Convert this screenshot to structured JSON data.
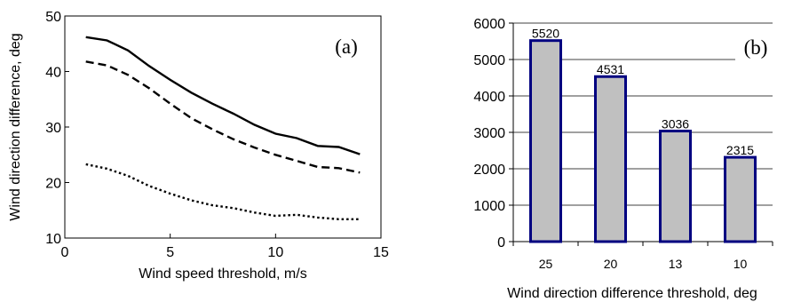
{
  "chart_data": [
    {
      "type": "line",
      "panel_label": "(a)",
      "xlabel": "Wind speed threshold, m/s",
      "ylabel": "Wind direction difference, deg",
      "xlim": [
        0,
        15
      ],
      "ylim": [
        10,
        50
      ],
      "xticks": [
        "0",
        "5",
        "10",
        "15"
      ],
      "yticks": [
        "10",
        "20",
        "30",
        "40",
        "50"
      ],
      "grid": false,
      "x": [
        1,
        2,
        3,
        4,
        5,
        6,
        7,
        8,
        9,
        10,
        11,
        12,
        13,
        14
      ],
      "series": [
        {
          "style": "solid",
          "color": "#000000",
          "values": [
            46.2,
            45.6,
            43.8,
            41.0,
            38.5,
            36.2,
            34.2,
            32.4,
            30.4,
            28.8,
            28.0,
            26.6,
            26.4,
            25.1
          ]
        },
        {
          "style": "dashed",
          "color": "#000000",
          "values": [
            41.8,
            41.1,
            39.4,
            37.0,
            34.2,
            31.6,
            29.6,
            27.8,
            26.3,
            25.0,
            23.9,
            22.8,
            22.6,
            21.8
          ]
        },
        {
          "style": "dotted",
          "color": "#000000",
          "values": [
            23.3,
            22.5,
            21.2,
            19.4,
            18.0,
            16.8,
            15.9,
            15.4,
            14.6,
            14.0,
            14.2,
            13.7,
            13.4,
            13.4
          ]
        }
      ]
    },
    {
      "type": "bar",
      "panel_label": "(b)",
      "xlabel": "Wind direction difference threshold, deg",
      "ylabel": "",
      "categories": [
        "25",
        "20",
        "13",
        "10"
      ],
      "values": [
        5520,
        4531,
        3036,
        2315
      ],
      "data_labels": [
        "5520",
        "4531",
        "3036",
        "2315"
      ],
      "ylim": [
        0,
        6000
      ],
      "yticks": [
        "0",
        "1000",
        "2000",
        "3000",
        "4000",
        "5000",
        "6000"
      ],
      "grid": true,
      "bar_fill": "#c0c0c0",
      "bar_edge": "#000080"
    }
  ]
}
